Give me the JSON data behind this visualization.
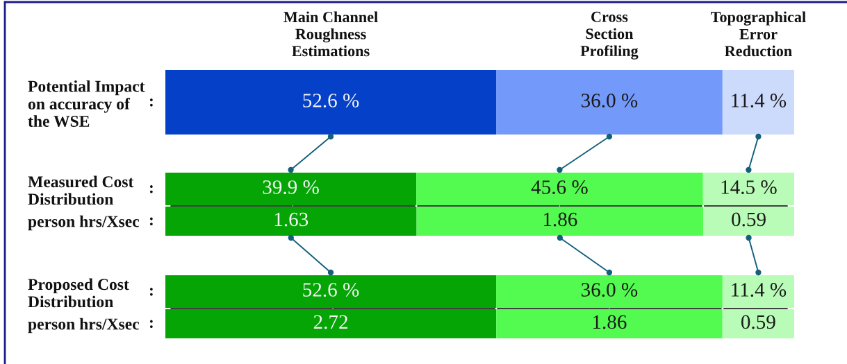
{
  "chart_data": [
    {
      "type": "bar",
      "orientation": "horizontal",
      "stacked": true,
      "tick_labels": "y",
      "categories": [
        "Potential Impact\non accuracy of\nthe WSE"
      ],
      "xlim": [
        0,
        100
      ],
      "annotations": [
        ":"
      ],
      "series": [
        {
          "name": "Main Channel\nRoughness\nEstimations",
          "color": "#0540c8",
          "values": [
            52.6
          ],
          "value_labels": [
            "52.6 %"
          ]
        },
        {
          "name": "Cross\nSection\nProfiling",
          "color": "#7399fa",
          "values": [
            36.0
          ],
          "value_labels": [
            "36.0 %"
          ]
        },
        {
          "name": "Topographical\nError\nReduction",
          "color": "#ccdafc",
          "values": [
            11.4
          ],
          "value_labels": [
            "11.4 %"
          ]
        }
      ]
    },
    {
      "type": "bar",
      "orientation": "horizontal",
      "stacked": true,
      "tick_labels": "y",
      "categories": [
        "Measured Cost\nDistribution"
      ],
      "xlim": [
        0,
        100
      ],
      "annotations": [
        ":"
      ],
      "series": [
        {
          "color": "#06a506",
          "values": [
            39.9
          ],
          "value_labels": [
            "39.9 %"
          ]
        },
        {
          "color": "#53fb50",
          "values": [
            45.6
          ],
          "value_labels": [
            "45.6 %"
          ]
        },
        {
          "color": "#b9fcb7",
          "values": [
            14.5
          ],
          "value_labels": [
            "14.5 %"
          ]
        }
      ]
    },
    {
      "type": "bar",
      "orientation": "horizontal",
      "stacked": true,
      "tick_labels": "y",
      "data_labels": true,
      "categories": [
        "person hrs/Xsec"
      ],
      "xlim": [
        0,
        4.08
      ],
      "annotations": [
        ":"
      ],
      "series": [
        {
          "color": "#06a506",
          "values": [
            1.63
          ]
        },
        {
          "color": "#53fb50",
          "values": [
            1.86
          ]
        },
        {
          "color": "#b9fcb7",
          "values": [
            0.59
          ]
        }
      ]
    },
    {
      "type": "bar",
      "orientation": "horizontal",
      "stacked": true,
      "tick_labels": "y",
      "categories": [
        "Proposed Cost\nDistribution"
      ],
      "xlim": [
        0,
        100
      ],
      "annotations": [
        ":"
      ],
      "series": [
        {
          "color": "#06a506",
          "values": [
            52.6
          ],
          "value_labels": [
            "52.6 %"
          ]
        },
        {
          "color": "#53fb50",
          "values": [
            36.0
          ],
          "value_labels": [
            "36.0 %"
          ]
        },
        {
          "color": "#b9fcb7",
          "values": [
            11.4
          ],
          "value_labels": [
            "11.4 %"
          ]
        }
      ]
    },
    {
      "type": "bar",
      "orientation": "horizontal",
      "stacked": true,
      "tick_labels": "y",
      "data_labels": true,
      "categories": [
        "person hrs/Xsec"
      ],
      "xlim": [
        0,
        5.17
      ],
      "annotations": [
        ":"
      ],
      "series": [
        {
          "color": "#06a506",
          "values": [
            2.72
          ]
        },
        {
          "color": "#53fb50",
          "values": [
            1.86
          ]
        },
        {
          "color": "#b9fcb7",
          "values": [
            0.59
          ]
        }
      ]
    }
  ]
}
